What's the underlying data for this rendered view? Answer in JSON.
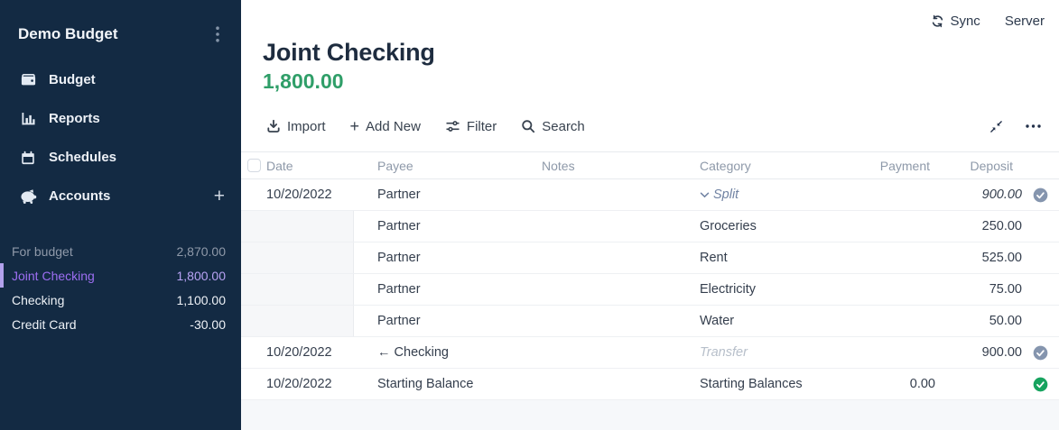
{
  "colors": {
    "sidebar_bg": "#132a43",
    "accent_purple": "#9d6ef2",
    "balance_green": "#2f9e68",
    "cleared_check": "#8595ae",
    "reconciled_check": "#17a35f"
  },
  "sidebar": {
    "title": "Demo Budget",
    "nav": [
      {
        "label": "Budget",
        "icon": "wallet-icon"
      },
      {
        "label": "Reports",
        "icon": "bar-chart-icon"
      },
      {
        "label": "Schedules",
        "icon": "calendar-icon"
      },
      {
        "label": "Accounts",
        "icon": "piggy-bank-icon",
        "add": true
      }
    ],
    "accounts": [
      {
        "name": "For budget",
        "balance": "2,870.00",
        "style": "muted"
      },
      {
        "name": "Joint Checking",
        "balance": "1,800.00",
        "style": "selected"
      },
      {
        "name": "Checking",
        "balance": "1,100.00",
        "style": "normal"
      },
      {
        "name": "Credit Card",
        "balance": "-30.00",
        "style": "normal"
      }
    ]
  },
  "topbar": {
    "sync": "Sync",
    "server": "Server"
  },
  "account_header": {
    "title": "Joint Checking",
    "balance": "1,800.00"
  },
  "toolbar": {
    "import": "Import",
    "add_new": "Add New",
    "filter": "Filter",
    "search": "Search"
  },
  "table": {
    "headers": {
      "date": "Date",
      "payee": "Payee",
      "notes": "Notes",
      "category": "Category",
      "payment": "Payment",
      "deposit": "Deposit"
    },
    "rows": [
      {
        "type": "split-parent",
        "date": "10/20/2022",
        "payee": "Partner",
        "notes": "",
        "category": "Split",
        "payment": "",
        "deposit": "900.00",
        "status": "cleared"
      },
      {
        "type": "split-child",
        "date": "",
        "payee": "Partner",
        "notes": "",
        "category": "Groceries",
        "payment": "",
        "deposit": "250.00",
        "status": null
      },
      {
        "type": "split-child",
        "date": "",
        "payee": "Partner",
        "notes": "",
        "category": "Rent",
        "payment": "",
        "deposit": "525.00",
        "status": null
      },
      {
        "type": "split-child",
        "date": "",
        "payee": "Partner",
        "notes": "",
        "category": "Electricity",
        "payment": "",
        "deposit": "75.00",
        "status": null
      },
      {
        "type": "split-child",
        "date": "",
        "payee": "Partner",
        "notes": "",
        "category": "Water",
        "payment": "",
        "deposit": "50.00",
        "status": null
      },
      {
        "type": "transfer",
        "date": "10/20/2022",
        "payee": "← Checking",
        "notes": "",
        "category": "Transfer",
        "payment": "",
        "deposit": "900.00",
        "status": "cleared"
      },
      {
        "type": "normal",
        "date": "10/20/2022",
        "payee": "Starting Balance",
        "notes": "",
        "category": "Starting Balances",
        "payment": "0.00",
        "deposit": "",
        "status": "reconciled"
      }
    ]
  }
}
